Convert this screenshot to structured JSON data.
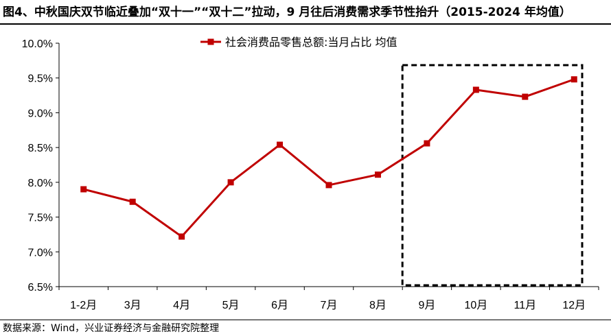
{
  "title": "图4、中秋国庆双节临近叠加“双十一”“双十二”拉动，9 月往后消费需求季节性抬升（2015-2024 年均值）",
  "source": "数据来源：Wind，兴业证券经济与金融研究院整理",
  "colors": {
    "series": "#c00000",
    "axis": "#000000",
    "highlight_box": "#000000"
  },
  "chart_data": {
    "type": "line",
    "categories": [
      "1-2月",
      "3月",
      "4月",
      "5月",
      "6月",
      "7月",
      "8月",
      "9月",
      "10月",
      "11月",
      "12月"
    ],
    "series": [
      {
        "name": "社会消费品零售总额:当月占比 均值",
        "values": [
          7.9,
          7.72,
          7.22,
          8.0,
          8.54,
          7.96,
          8.11,
          8.56,
          9.33,
          9.23,
          9.48
        ]
      }
    ],
    "ylim": [
      6.5,
      10.0
    ],
    "yticks": [
      "6.5%",
      "7.0%",
      "7.5%",
      "8.0%",
      "8.5%",
      "9.0%",
      "9.5%",
      "10.0%"
    ],
    "ytick_values": [
      6.5,
      7.0,
      7.5,
      8.0,
      8.5,
      9.0,
      9.5,
      10.0
    ],
    "grid": false,
    "legend_position": "top-center",
    "highlight": {
      "from_category": "9月",
      "to_category": "12月",
      "style": "dashed box"
    }
  }
}
